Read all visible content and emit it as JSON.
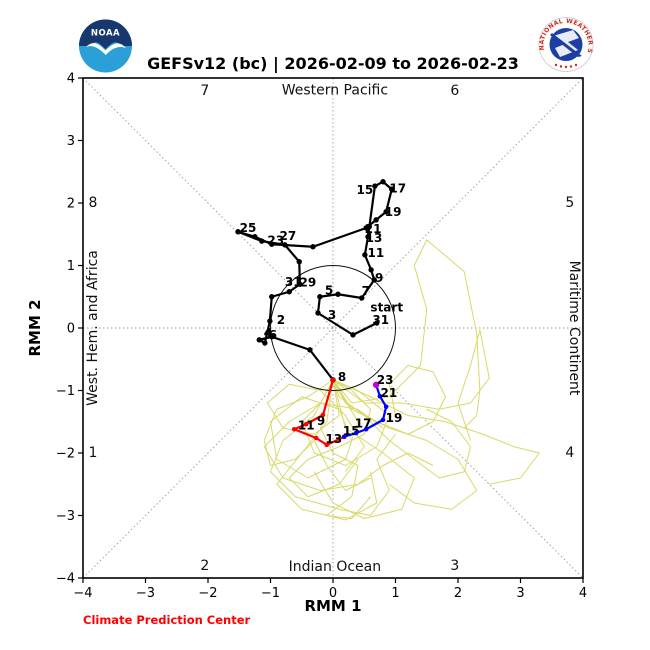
{
  "header": {
    "title": "GEFSv12 (bc) | 2026-02-09 to 2026-02-23"
  },
  "footer": {
    "credit": "Climate Prediction Center"
  },
  "logos": {
    "noaa_text": "NOAA",
    "nws_text": "NATIONAL WEATHER SERVICE"
  },
  "chart_data": {
    "type": "line",
    "title": "GEFSv12 (bc) | 2026-02-09 to 2026-02-23",
    "xlabel": "RMM 1",
    "ylabel": "RMM 2",
    "xlim": [
      -4,
      4
    ],
    "ylim": [
      -4,
      4
    ],
    "xticks": [
      -4,
      -3,
      -2,
      -1,
      0,
      1,
      2,
      3,
      4
    ],
    "yticks": [
      -4,
      -3,
      -2,
      -1,
      0,
      1,
      2,
      3,
      4
    ],
    "xtick_labels": [
      "−4",
      "−3",
      "−2",
      "−1",
      "0",
      "1",
      "2",
      "3",
      "4"
    ],
    "ytick_labels": [
      "−4",
      "−3",
      "−2",
      "−1",
      "0",
      "1",
      "2",
      "3",
      "4"
    ],
    "grid": "diagonal-and-center-dotted",
    "unit_circle": true,
    "colors": {
      "observed": "#000000",
      "forecast_week1": "#ff0000",
      "forecast_week2": "#0000ff",
      "forecast_end": "#cc00cc",
      "ensemble": "#d9d96a",
      "grid": "#999999",
      "credit": "#ff0000"
    },
    "phases": [
      {
        "label": "1",
        "x": -3.84,
        "y": -1.98
      },
      {
        "label": "2",
        "x": -2.05,
        "y": -3.79
      },
      {
        "label": "3",
        "x": 1.95,
        "y": -3.79
      },
      {
        "label": "4",
        "x": 3.79,
        "y": -1.98
      },
      {
        "label": "5",
        "x": 3.79,
        "y": 2.02
      },
      {
        "label": "6",
        "x": 1.95,
        "y": 3.81
      },
      {
        "label": "7",
        "x": -2.05,
        "y": 3.81
      },
      {
        "label": "8",
        "x": -3.84,
        "y": 2.02
      }
    ],
    "regions": [
      {
        "label": "Western Pacific",
        "x": 0.03,
        "y": 3.82,
        "rotate": 0
      },
      {
        "label": "Indian Ocean",
        "x": 0.03,
        "y": -3.81,
        "rotate": 0
      },
      {
        "label": "West. Hem. and Africa",
        "x": -3.78,
        "y": 0,
        "rotate": -90
      },
      {
        "label": "Maritime Continent",
        "x": 3.79,
        "y": 0,
        "rotate": 90
      }
    ],
    "annotations": [
      {
        "text": "start",
        "x": 0.86,
        "y": 0.33
      }
    ],
    "series": [
      {
        "name": "observed",
        "points": [
          [
            0.7,
            0.08,
            "31",
            4,
            -3
          ],
          [
            0.32,
            -0.11,
            "",
            0,
            0
          ],
          [
            -0.24,
            0.24,
            "3",
            14,
            2
          ],
          [
            -0.21,
            0.5,
            "",
            0,
            0
          ],
          [
            0.08,
            0.54,
            "5",
            -9,
            -4
          ],
          [
            0.46,
            0.48,
            "7",
            4,
            -7
          ],
          [
            0.66,
            0.77,
            "",
            0,
            0
          ],
          [
            0.61,
            0.93,
            "9",
            8,
            8
          ],
          [
            0.51,
            1.17,
            "11",
            11,
            -2
          ],
          [
            0.56,
            1.46,
            "13",
            6,
            1
          ],
          [
            0.67,
            2.27,
            "15",
            -10,
            4
          ],
          [
            0.8,
            2.34,
            "",
            0,
            0
          ],
          [
            0.94,
            2.22,
            "17",
            6,
            -1
          ],
          [
            0.85,
            1.86,
            "19",
            7,
            0
          ],
          [
            0.69,
            1.73,
            "",
            0,
            0
          ],
          [
            0.53,
            1.6,
            "21",
            7,
            1
          ],
          [
            -0.32,
            1.3,
            "",
            0,
            0
          ],
          [
            -0.98,
            1.34,
            "23",
            4,
            -4
          ],
          [
            -1.25,
            1.46,
            "",
            0,
            0
          ],
          [
            -1.52,
            1.54,
            "25",
            10,
            -4
          ],
          [
            -1.14,
            1.39,
            "",
            0,
            0
          ],
          [
            -0.77,
            1.33,
            "27",
            3,
            -9
          ],
          [
            -0.54,
            1.06,
            "",
            0,
            0
          ],
          [
            -0.53,
            0.7,
            "29",
            8,
            -2
          ],
          [
            -0.7,
            0.58,
            "31",
            4,
            -10
          ],
          [
            -0.98,
            0.5,
            "",
            0,
            0
          ],
          [
            -1.01,
            0.11,
            "2",
            11,
            -1
          ],
          [
            -1.09,
            -0.24,
            "4",
            3,
            -10
          ],
          [
            -1.18,
            -0.19,
            "",
            0,
            0
          ],
          [
            -0.98,
            -0.14,
            "6",
            1,
            -2
          ],
          [
            -0.37,
            -0.35,
            "",
            0,
            0
          ],
          [
            0.0,
            -0.83,
            "8",
            9,
            -3
          ]
        ]
      },
      {
        "name": "forecast-week1",
        "points": [
          [
            0.0,
            -0.83,
            "",
            0,
            0
          ],
          [
            -0.16,
            -1.39,
            "9",
            -2,
            6
          ],
          [
            -0.43,
            -1.54,
            "",
            0,
            0
          ],
          [
            -0.62,
            -1.62,
            "11",
            12,
            -4
          ],
          [
            -0.27,
            -1.76,
            "",
            0,
            0
          ],
          [
            -0.1,
            -1.87,
            "13",
            7,
            -6
          ],
          [
            0.18,
            -1.74,
            "",
            0,
            0
          ]
        ]
      },
      {
        "name": "forecast-week2",
        "points": [
          [
            0.18,
            -1.74,
            "15",
            7,
            -6
          ],
          [
            0.37,
            -1.68,
            "",
            0,
            0
          ],
          [
            0.53,
            -1.62,
            "17",
            -3,
            -6
          ],
          [
            0.8,
            -1.47,
            "19",
            11,
            -2
          ],
          [
            0.85,
            -1.26,
            "",
            0,
            0
          ],
          [
            0.75,
            -1.09,
            "21",
            9,
            -3
          ],
          [
            0.69,
            -0.91,
            "23",
            9,
            -5
          ]
        ]
      }
    ],
    "ensemble": [
      [
        [
          0,
          -0.83
        ],
        [
          0.3,
          -1.2
        ],
        [
          0.9,
          -1.1
        ],
        [
          1.4,
          -0.6
        ],
        [
          1.5,
          0.3
        ],
        [
          1.3,
          1.0
        ],
        [
          1.5,
          1.41
        ],
        [
          2.1,
          0.9
        ],
        [
          2.3,
          -0.1
        ],
        [
          2.35,
          -1.0
        ],
        [
          2.3,
          -1.4
        ],
        [
          2.1,
          -1.6
        ]
      ],
      [
        [
          0,
          -0.83
        ],
        [
          -0.3,
          -1.4
        ],
        [
          -0.8,
          -1.8
        ],
        [
          -1.0,
          -2.3
        ],
        [
          -0.6,
          -2.7
        ],
        [
          0.1,
          -2.9
        ],
        [
          0.6,
          -3.0
        ],
        [
          0.9,
          -2.6
        ],
        [
          0.7,
          -2.1
        ],
        [
          1.0,
          -1.7
        ]
      ],
      [
        [
          0,
          -0.83
        ],
        [
          0.4,
          -1.5
        ],
        [
          0.2,
          -2.1
        ],
        [
          -0.4,
          -2.4
        ],
        [
          -0.9,
          -2.1
        ],
        [
          -1.0,
          -1.5
        ],
        [
          -0.5,
          -1.1
        ],
        [
          0.1,
          -1.3
        ],
        [
          0.3,
          -1.8
        ]
      ],
      [
        [
          0,
          -0.83
        ],
        [
          0.6,
          -1.1
        ],
        [
          1.2,
          -1.4
        ],
        [
          1.8,
          -1.5
        ],
        [
          2.4,
          -1.7
        ],
        [
          2.9,
          -1.9
        ],
        [
          3.3,
          -2.0
        ],
        [
          3.0,
          -2.4
        ],
        [
          2.5,
          -2.5
        ]
      ],
      [
        [
          0,
          -0.83
        ],
        [
          0.2,
          -1.6
        ],
        [
          0.8,
          -2.0
        ],
        [
          1.3,
          -2.4
        ],
        [
          1.1,
          -2.9
        ],
        [
          0.5,
          -3.05
        ],
        [
          0.0,
          -2.8
        ],
        [
          -0.3,
          -2.3
        ]
      ],
      [
        [
          0,
          -0.83
        ],
        [
          -0.2,
          -1.2
        ],
        [
          -0.7,
          -1.5
        ],
        [
          -1.1,
          -1.9
        ],
        [
          -0.8,
          -2.4
        ],
        [
          -0.2,
          -2.6
        ],
        [
          0.4,
          -2.5
        ],
        [
          0.8,
          -2.2
        ],
        [
          1.2,
          -2.0
        ],
        [
          1.6,
          -2.2
        ]
      ],
      [
        [
          0,
          -0.83
        ],
        [
          0.3,
          -1.3
        ],
        [
          0.9,
          -1.6
        ],
        [
          1.5,
          -1.8
        ],
        [
          2.0,
          -2.1
        ],
        [
          2.3,
          -2.6
        ],
        [
          1.9,
          -2.9
        ],
        [
          1.3,
          -2.8
        ],
        [
          0.9,
          -2.5
        ]
      ],
      [
        [
          0,
          -0.83
        ],
        [
          -0.1,
          -1.5
        ],
        [
          -0.5,
          -2.0
        ],
        [
          -0.9,
          -2.5
        ],
        [
          -0.5,
          -2.9
        ],
        [
          0.2,
          -3.07
        ],
        [
          0.7,
          -2.8
        ],
        [
          0.6,
          -2.3
        ]
      ],
      [
        [
          0,
          -0.83
        ],
        [
          0.5,
          -1.2
        ],
        [
          1.1,
          -1.2
        ],
        [
          1.7,
          -1.3
        ],
        [
          2.2,
          -1.2
        ],
        [
          2.5,
          -0.8
        ],
        [
          2.35,
          -0.03
        ],
        [
          2.2,
          -0.6
        ],
        [
          2.0,
          -1.2
        ],
        [
          2.2,
          -1.8
        ]
      ],
      [
        [
          0,
          -0.83
        ],
        [
          0.1,
          -1.4
        ],
        [
          -0.3,
          -1.7
        ],
        [
          -0.8,
          -1.6
        ],
        [
          -1.05,
          -1.2
        ],
        [
          -0.7,
          -0.9
        ],
        [
          -0.2,
          -1.0
        ],
        [
          0.2,
          -1.4
        ],
        [
          0.5,
          -1.9
        ],
        [
          0.2,
          -2.3
        ]
      ],
      [
        [
          0,
          -0.83
        ],
        [
          0.4,
          -1.0
        ],
        [
          0.9,
          -1.4
        ],
        [
          0.7,
          -1.9
        ],
        [
          0.2,
          -2.2
        ],
        [
          -0.3,
          -2.0
        ],
        [
          -0.5,
          -1.5
        ],
        [
          -0.2,
          -1.2
        ],
        [
          0.4,
          -1.3
        ],
        [
          0.8,
          -1.6
        ]
      ],
      [
        [
          0,
          -0.83
        ],
        [
          0.2,
          -1.2
        ],
        [
          0.7,
          -1.5
        ],
        [
          1.2,
          -1.7
        ],
        [
          1.6,
          -1.5
        ],
        [
          1.8,
          -1.1
        ],
        [
          1.6,
          -0.7
        ],
        [
          1.2,
          -0.6
        ],
        [
          0.9,
          -0.9
        ],
        [
          1.0,
          -1.4
        ]
      ],
      [
        [
          0,
          -0.83
        ],
        [
          -0.4,
          -1.1
        ],
        [
          -0.9,
          -1.3
        ],
        [
          -1.1,
          -1.8
        ],
        [
          -1.0,
          -2.2
        ],
        [
          -0.6,
          -2.1
        ],
        [
          -0.3,
          -1.8
        ],
        [
          -0.1,
          -2.2
        ],
        [
          0.2,
          -2.6
        ],
        [
          0.6,
          -2.4
        ]
      ],
      [
        [
          0,
          -0.83
        ],
        [
          0.1,
          -1.1
        ],
        [
          0.5,
          -1.4
        ],
        [
          0.9,
          -1.8
        ],
        [
          1.3,
          -2.1
        ],
        [
          1.7,
          -2.4
        ],
        [
          2.1,
          -2.3
        ],
        [
          2.2,
          -1.9
        ],
        [
          1.9,
          -1.5
        ],
        [
          1.5,
          -1.3
        ]
      ],
      [
        [
          0,
          -0.83
        ],
        [
          -0.2,
          -1.6
        ],
        [
          0.0,
          -2.0
        ],
        [
          0.4,
          -2.2
        ],
        [
          0.3,
          -2.7
        ],
        [
          -0.1,
          -3.0
        ],
        [
          0.3,
          -3.05
        ],
        [
          0.6,
          -2.7
        ]
      ],
      [
        [
          0,
          -0.83
        ],
        [
          0.3,
          -1.0
        ],
        [
          0.6,
          -1.3
        ],
        [
          0.5,
          -1.7
        ],
        [
          0.1,
          -1.9
        ],
        [
          -0.4,
          -2.1
        ],
        [
          -0.7,
          -2.4
        ],
        [
          -0.4,
          -2.7
        ],
        [
          0.1,
          -2.5
        ],
        [
          0.4,
          -2.1
        ]
      ]
    ]
  }
}
